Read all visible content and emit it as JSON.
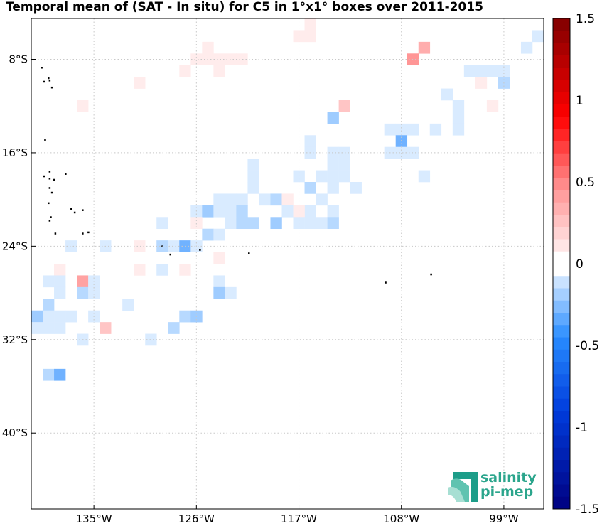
{
  "title": "Temporal mean of (SAT - In situ) for C5 in 1°x1° boxes over 2011-2015",
  "logo": {
    "line1": "salinity",
    "line2": "pi-mep"
  },
  "chart_data": {
    "type": "heatmap",
    "title": "Temporal mean of (SAT - In situ) for C5 in 1°x1° boxes over 2011-2015",
    "xlabel": "",
    "ylabel": "",
    "cell_size_deg": 1,
    "x_range_lon": [
      -140.5,
      -95.5
    ],
    "y_range_lat": [
      -46.5,
      -4.5
    ],
    "x_ticks": [
      {
        "value": -135,
        "label": "135°W"
      },
      {
        "value": -126,
        "label": "126°W"
      },
      {
        "value": -117,
        "label": "117°W"
      },
      {
        "value": -108,
        "label": "108°W"
      },
      {
        "value": -99,
        "label": "99°W"
      }
    ],
    "y_ticks": [
      {
        "value": -8,
        "label": "8°S"
      },
      {
        "value": -16,
        "label": "16°S"
      },
      {
        "value": -24,
        "label": "24°S"
      },
      {
        "value": -32,
        "label": "32°S"
      },
      {
        "value": -40,
        "label": "40°S"
      }
    ],
    "grid": true,
    "colorbar": {
      "range": [
        -1.5,
        1.5
      ],
      "levels": 40,
      "ticks": [
        {
          "value": 1.5,
          "label": "1.5"
        },
        {
          "value": 1,
          "label": "1"
        },
        {
          "value": 0.5,
          "label": "0.5"
        },
        {
          "value": 0,
          "label": "0"
        },
        {
          "value": -0.5,
          "label": "-0.5"
        },
        {
          "value": -1,
          "label": "-1"
        },
        {
          "value": -1.5,
          "label": "-1.5"
        }
      ]
    },
    "cells": [
      [
        -116,
        -5,
        0.08
      ],
      [
        -117,
        -6,
        0.08
      ],
      [
        -116,
        -6,
        0.08
      ],
      [
        -96,
        -6,
        -0.08
      ],
      [
        -97,
        -7,
        -0.08
      ],
      [
        -106,
        -7,
        0.35
      ],
      [
        -107,
        -8,
        0.45
      ],
      [
        -125,
        -7,
        0.08
      ],
      [
        -126,
        -8,
        0.08
      ],
      [
        -125,
        -8,
        0.08
      ],
      [
        -124,
        -8,
        0.08
      ],
      [
        -123,
        -8,
        0.08
      ],
      [
        -122,
        -8,
        0.08
      ],
      [
        -127,
        -9,
        0.08
      ],
      [
        -124,
        -9,
        0.08
      ],
      [
        -102,
        -9,
        -0.08
      ],
      [
        -101,
        -9,
        -0.08
      ],
      [
        -100,
        -9,
        -0.08
      ],
      [
        -99,
        -9,
        -0.08
      ],
      [
        -131,
        -10,
        0.08
      ],
      [
        -101,
        -10,
        0.08
      ],
      [
        -99,
        -10,
        -0.15
      ],
      [
        -104,
        -11,
        -0.08
      ],
      [
        -103,
        -12,
        -0.08
      ],
      [
        -100,
        -12,
        0.08
      ],
      [
        -136,
        -12,
        0.08
      ],
      [
        -113,
        -12,
        0.25
      ],
      [
        -114,
        -13,
        -0.2
      ],
      [
        -103,
        -13,
        -0.08
      ],
      [
        -109,
        -14,
        -0.08
      ],
      [
        -108,
        -14,
        -0.08
      ],
      [
        -107,
        -14,
        -0.08
      ],
      [
        -105,
        -14,
        -0.08
      ],
      [
        -103,
        -14,
        -0.08
      ],
      [
        -116,
        -15,
        -0.08
      ],
      [
        -108,
        -15,
        -0.3
      ],
      [
        -116,
        -16,
        -0.08
      ],
      [
        -114,
        -16,
        -0.08
      ],
      [
        -113,
        -16,
        -0.08
      ],
      [
        -109,
        -16,
        -0.08
      ],
      [
        -108,
        -16,
        -0.08
      ],
      [
        -107,
        -16,
        -0.08
      ],
      [
        -121,
        -17,
        -0.08
      ],
      [
        -114,
        -17,
        -0.08
      ],
      [
        -113,
        -17,
        -0.08
      ],
      [
        -121,
        -18,
        -0.08
      ],
      [
        -117,
        -18,
        -0.08
      ],
      [
        -115,
        -18,
        -0.08
      ],
      [
        -114,
        -18,
        -0.08
      ],
      [
        -113,
        -18,
        -0.08
      ],
      [
        -106,
        -18,
        -0.08
      ],
      [
        -121,
        -19,
        -0.08
      ],
      [
        -116,
        -19,
        -0.15
      ],
      [
        -114,
        -19,
        -0.08
      ],
      [
        -112,
        -19,
        -0.08
      ],
      [
        -124,
        -20,
        -0.08
      ],
      [
        -123,
        -20,
        -0.08
      ],
      [
        -122,
        -20,
        -0.08
      ],
      [
        -120,
        -20,
        -0.08
      ],
      [
        -119,
        -20,
        -0.15
      ],
      [
        -118,
        -20,
        0.08
      ],
      [
        -115,
        -20,
        -0.08
      ],
      [
        -126,
        -21,
        -0.08
      ],
      [
        -125,
        -21,
        -0.2
      ],
      [
        -124,
        -21,
        -0.08
      ],
      [
        -123,
        -21,
        -0.08
      ],
      [
        -122,
        -21,
        -0.15
      ],
      [
        -118,
        -21,
        -0.08
      ],
      [
        -116,
        -21,
        -0.08
      ],
      [
        -117,
        -21,
        0.08
      ],
      [
        -114,
        -21,
        -0.08
      ],
      [
        -129,
        -22,
        -0.08
      ],
      [
        -126,
        -22,
        0.08
      ],
      [
        -123,
        -22,
        -0.08
      ],
      [
        -122,
        -22,
        -0.15
      ],
      [
        -121,
        -22,
        -0.15
      ],
      [
        -119,
        -22,
        -0.2
      ],
      [
        -117,
        -22,
        -0.08
      ],
      [
        -116,
        -22,
        -0.08
      ],
      [
        -115,
        -22,
        -0.08
      ],
      [
        -114,
        -22,
        -0.15
      ],
      [
        -125,
        -23,
        -0.15
      ],
      [
        -124,
        -23,
        -0.08
      ],
      [
        -137,
        -24,
        -0.08
      ],
      [
        -134,
        -24,
        -0.08
      ],
      [
        -131,
        -24,
        0.08
      ],
      [
        -129,
        -24,
        -0.15
      ],
      [
        -128,
        -24,
        -0.08
      ],
      [
        -127,
        -24,
        -0.3
      ],
      [
        -126,
        -24,
        -0.08
      ],
      [
        -124,
        -25,
        0.08
      ],
      [
        -138,
        -26,
        0.08
      ],
      [
        -131,
        -26,
        0.08
      ],
      [
        -129,
        -26,
        -0.08
      ],
      [
        -127,
        -26,
        0.08
      ],
      [
        -139,
        -27,
        -0.08
      ],
      [
        -138,
        -27,
        -0.08
      ],
      [
        -136,
        -27,
        0.4
      ],
      [
        -135,
        -27,
        -0.08
      ],
      [
        -124,
        -27,
        -0.08
      ],
      [
        -138,
        -28,
        -0.08
      ],
      [
        -136,
        -28,
        -0.15
      ],
      [
        -135,
        -28,
        -0.08
      ],
      [
        -124,
        -28,
        -0.2
      ],
      [
        -123,
        -28,
        -0.08
      ],
      [
        -139,
        -29,
        -0.15
      ],
      [
        -132,
        -29,
        -0.08
      ],
      [
        -140,
        -30,
        -0.2
      ],
      [
        -139,
        -30,
        -0.08
      ],
      [
        -138,
        -30,
        -0.08
      ],
      [
        -137,
        -30,
        -0.08
      ],
      [
        -135,
        -30,
        -0.08
      ],
      [
        -127,
        -30,
        -0.15
      ],
      [
        -126,
        -30,
        -0.2
      ],
      [
        -140,
        -31,
        -0.08
      ],
      [
        -139,
        -31,
        -0.08
      ],
      [
        -138,
        -31,
        -0.08
      ],
      [
        -134,
        -31,
        0.25
      ],
      [
        -128,
        -31,
        -0.15
      ],
      [
        -136,
        -32,
        -0.08
      ],
      [
        -130,
        -32,
        -0.08
      ],
      [
        -139,
        -35,
        -0.15
      ],
      [
        -138,
        -35,
        -0.3
      ]
    ],
    "land": [
      [
        -139.6,
        -8.7
      ],
      [
        -139.0,
        -9.6
      ],
      [
        -138.9,
        -9.8
      ],
      [
        -139.4,
        -9.9
      ],
      [
        -138.7,
        -10.4
      ],
      [
        -139.3,
        -14.9
      ],
      [
        -138.9,
        -17.6
      ],
      [
        -137.5,
        -17.8
      ],
      [
        -139.4,
        -18.0
      ],
      [
        -138.9,
        -18.2
      ],
      [
        -138.5,
        -18.3
      ],
      [
        -138.9,
        -19.0
      ],
      [
        -138.7,
        -19.4
      ],
      [
        -139.0,
        -20.3
      ],
      [
        -137.0,
        -20.8
      ],
      [
        -136.0,
        -20.9
      ],
      [
        -136.7,
        -21.1
      ],
      [
        -138.8,
        -21.5
      ],
      [
        -138.9,
        -21.8
      ],
      [
        -135.5,
        -22.8
      ],
      [
        -138.4,
        -22.9
      ],
      [
        -136.0,
        -22.9
      ],
      [
        -129.0,
        -24.0
      ],
      [
        -128.3,
        -24.7
      ],
      [
        -125.7,
        -24.3
      ],
      [
        -121.4,
        -24.6
      ],
      [
        -109.4,
        -27.1
      ],
      [
        -105.4,
        -26.4
      ]
    ]
  }
}
